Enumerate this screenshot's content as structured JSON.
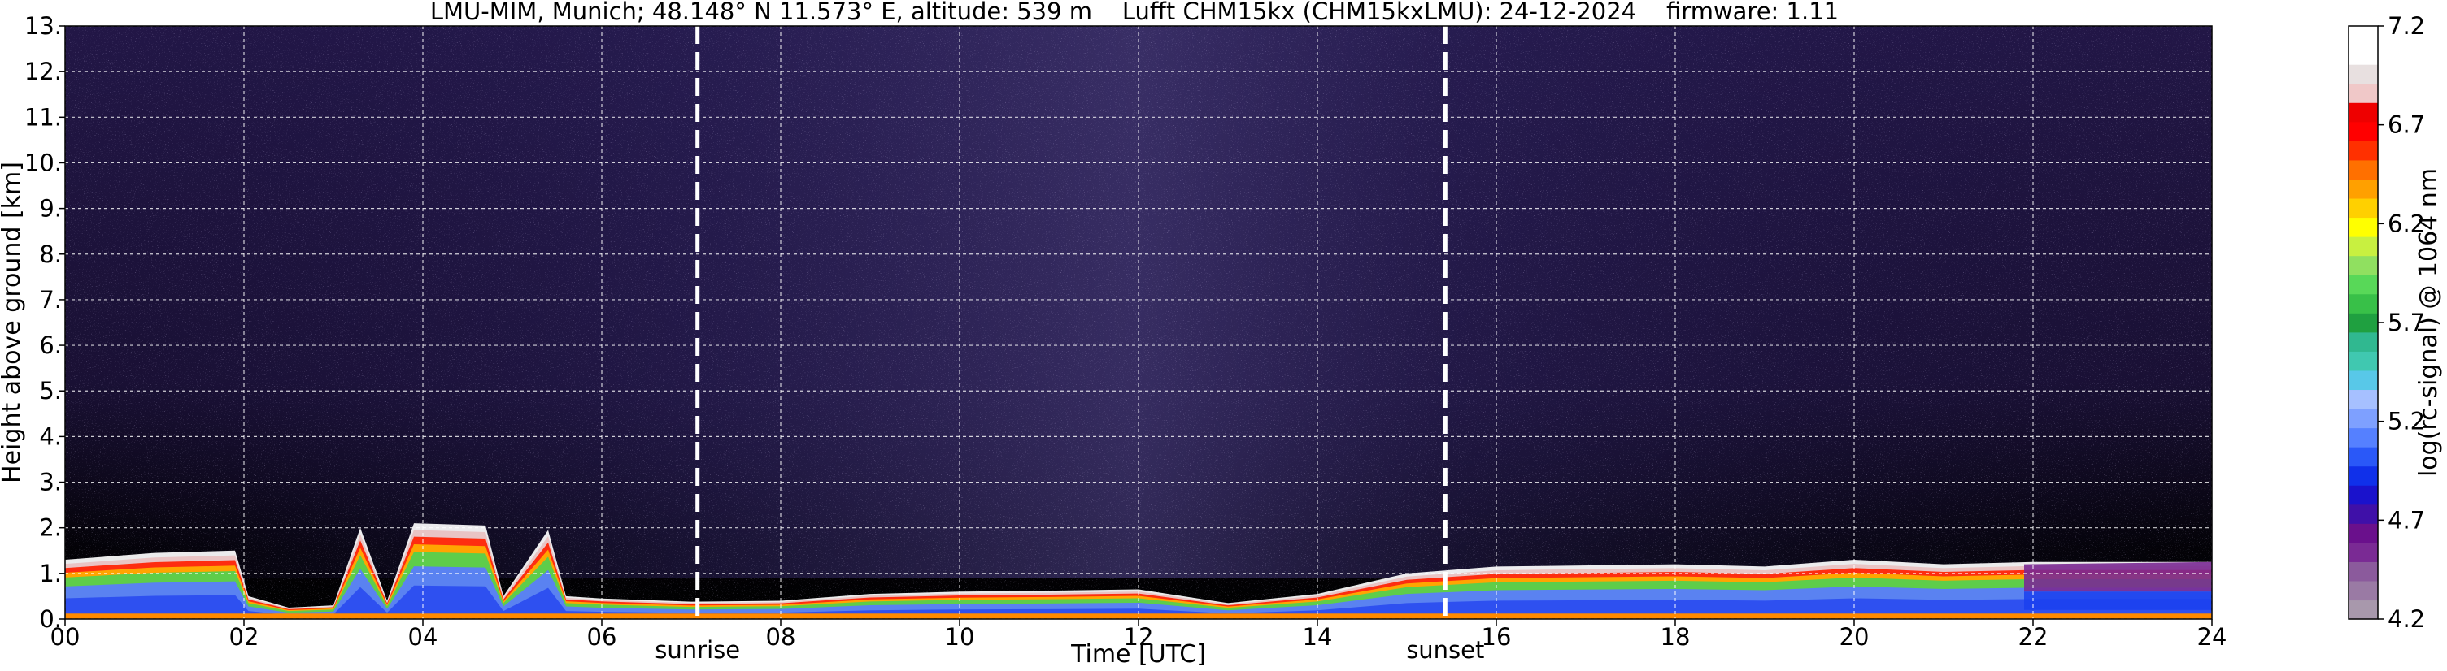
{
  "chart_data": {
    "type": "heatmap",
    "title": "LMU-MIM, Munich; 48.148° N 11.573° E, altitude: 539 m    Lufft CHM15kx (CHM15kxLMU): 24-12-2024    firmware: 1.11",
    "xlabel": "Time [UTC]",
    "ylabel": "Height above ground [km]",
    "colorbar_label": "log(rc-signal) @ 1064 nm",
    "xlim": [
      0,
      24
    ],
    "ylim": [
      0,
      13
    ],
    "x_ticks": [
      "00",
      "02",
      "04",
      "06",
      "08",
      "10",
      "12",
      "14",
      "16",
      "18",
      "20",
      "22",
      "24"
    ],
    "y_ticks": [
      "0.",
      "1.",
      "2.",
      "3.",
      "4.",
      "5.",
      "6.",
      "7.",
      "8.",
      "9.",
      "10.",
      "11.",
      "12.",
      "13."
    ],
    "colorbar_range": [
      4.2,
      7.2
    ],
    "colorbar_ticks": [
      "4.2",
      "4.7",
      "5.2",
      "5.7",
      "6.2",
      "6.7",
      "7.2"
    ],
    "colorbar_colors": [
      "#a898ac",
      "#9a7aa4",
      "#8b5a9c",
      "#7a2a94",
      "#6a108c",
      "#3f10a8",
      "#1a12cc",
      "#1030ea",
      "#2a58f8",
      "#5580ff",
      "#7ea0ff",
      "#a6c0ff",
      "#58c8e8",
      "#40c8b0",
      "#30b890",
      "#1fa040",
      "#38c048",
      "#58d858",
      "#90e060",
      "#c8f040",
      "#ffff00",
      "#ffd000",
      "#ffa000",
      "#ff7000",
      "#ff3000",
      "#ff0000",
      "#ee0000",
      "#f0c8c8",
      "#e8e0e0",
      "#ffffff",
      "#ffffff"
    ],
    "events": [
      {
        "label": "sunrise",
        "x": 7.07
      },
      {
        "label": "sunset",
        "x": 15.43
      }
    ],
    "layers": {
      "signal_top": [
        [
          0,
          1.3
        ],
        [
          1,
          1.45
        ],
        [
          1.9,
          1.5
        ],
        [
          2.05,
          0.5
        ],
        [
          2.5,
          0.25
        ],
        [
          3,
          0.3
        ],
        [
          3.3,
          2.0
        ],
        [
          3.6,
          0.4
        ],
        [
          3.9,
          2.1
        ],
        [
          4.7,
          2.05
        ],
        [
          4.9,
          0.5
        ],
        [
          5.4,
          1.95
        ],
        [
          5.6,
          0.5
        ],
        [
          6,
          0.45
        ],
        [
          7,
          0.38
        ],
        [
          8,
          0.4
        ],
        [
          9,
          0.55
        ],
        [
          10,
          0.6
        ],
        [
          11,
          0.62
        ],
        [
          12,
          0.65
        ],
        [
          13,
          0.35
        ],
        [
          14,
          0.55
        ],
        [
          15,
          1.0
        ],
        [
          16,
          1.15
        ],
        [
          18,
          1.2
        ],
        [
          19,
          1.15
        ],
        [
          20,
          1.3
        ],
        [
          21,
          1.2
        ],
        [
          22,
          1.25
        ],
        [
          24,
          1.25
        ]
      ]
    }
  }
}
